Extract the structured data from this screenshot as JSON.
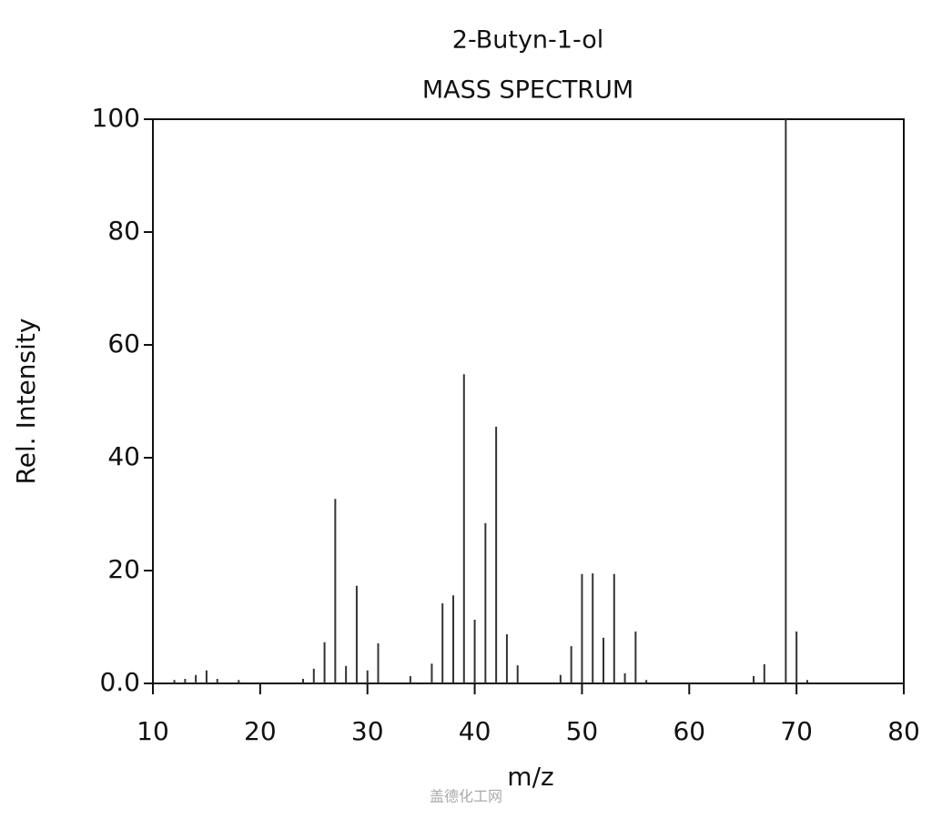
{
  "chart_data": {
    "type": "bar",
    "title": "2-Butyn-1-ol",
    "subtitle": "MASS SPECTRUM",
    "x_label": "m/z",
    "y_label": "Rel. Intensity",
    "watermark": "盖德化工网",
    "color": "#333333",
    "x": [
      12,
      13,
      14,
      15,
      16,
      18,
      24,
      25,
      26,
      27,
      28,
      29,
      30,
      31,
      34,
      36,
      37,
      38,
      39,
      40,
      41,
      42,
      43,
      44,
      48,
      49,
      50,
      51,
      52,
      53,
      54,
      55,
      56,
      66,
      67,
      69,
      70,
      71
    ],
    "values": [
      0.6,
      0.8,
      1.5,
      2.3,
      0.8,
      0.6,
      0.8,
      2.6,
      7.3,
      32.7,
      3.1,
      17.3,
      2.3,
      7.1,
      1.3,
      3.5,
      14.2,
      15.6,
      54.8,
      11.3,
      28.4,
      45.5,
      8.7,
      3.2,
      1.5,
      6.6,
      19.4,
      19.5,
      8.1,
      19.4,
      1.8,
      9.2,
      0.6,
      1.3,
      3.4,
      100,
      9.2,
      0.6
    ],
    "xlim": [
      10,
      80
    ],
    "xticks": [
      10,
      20,
      30,
      40,
      50,
      60,
      70,
      80
    ],
    "ylim": [
      0,
      100
    ],
    "yticks": [
      {
        "value": 0,
        "label": "0.0"
      },
      20,
      40,
      60,
      80,
      100
    ]
  }
}
